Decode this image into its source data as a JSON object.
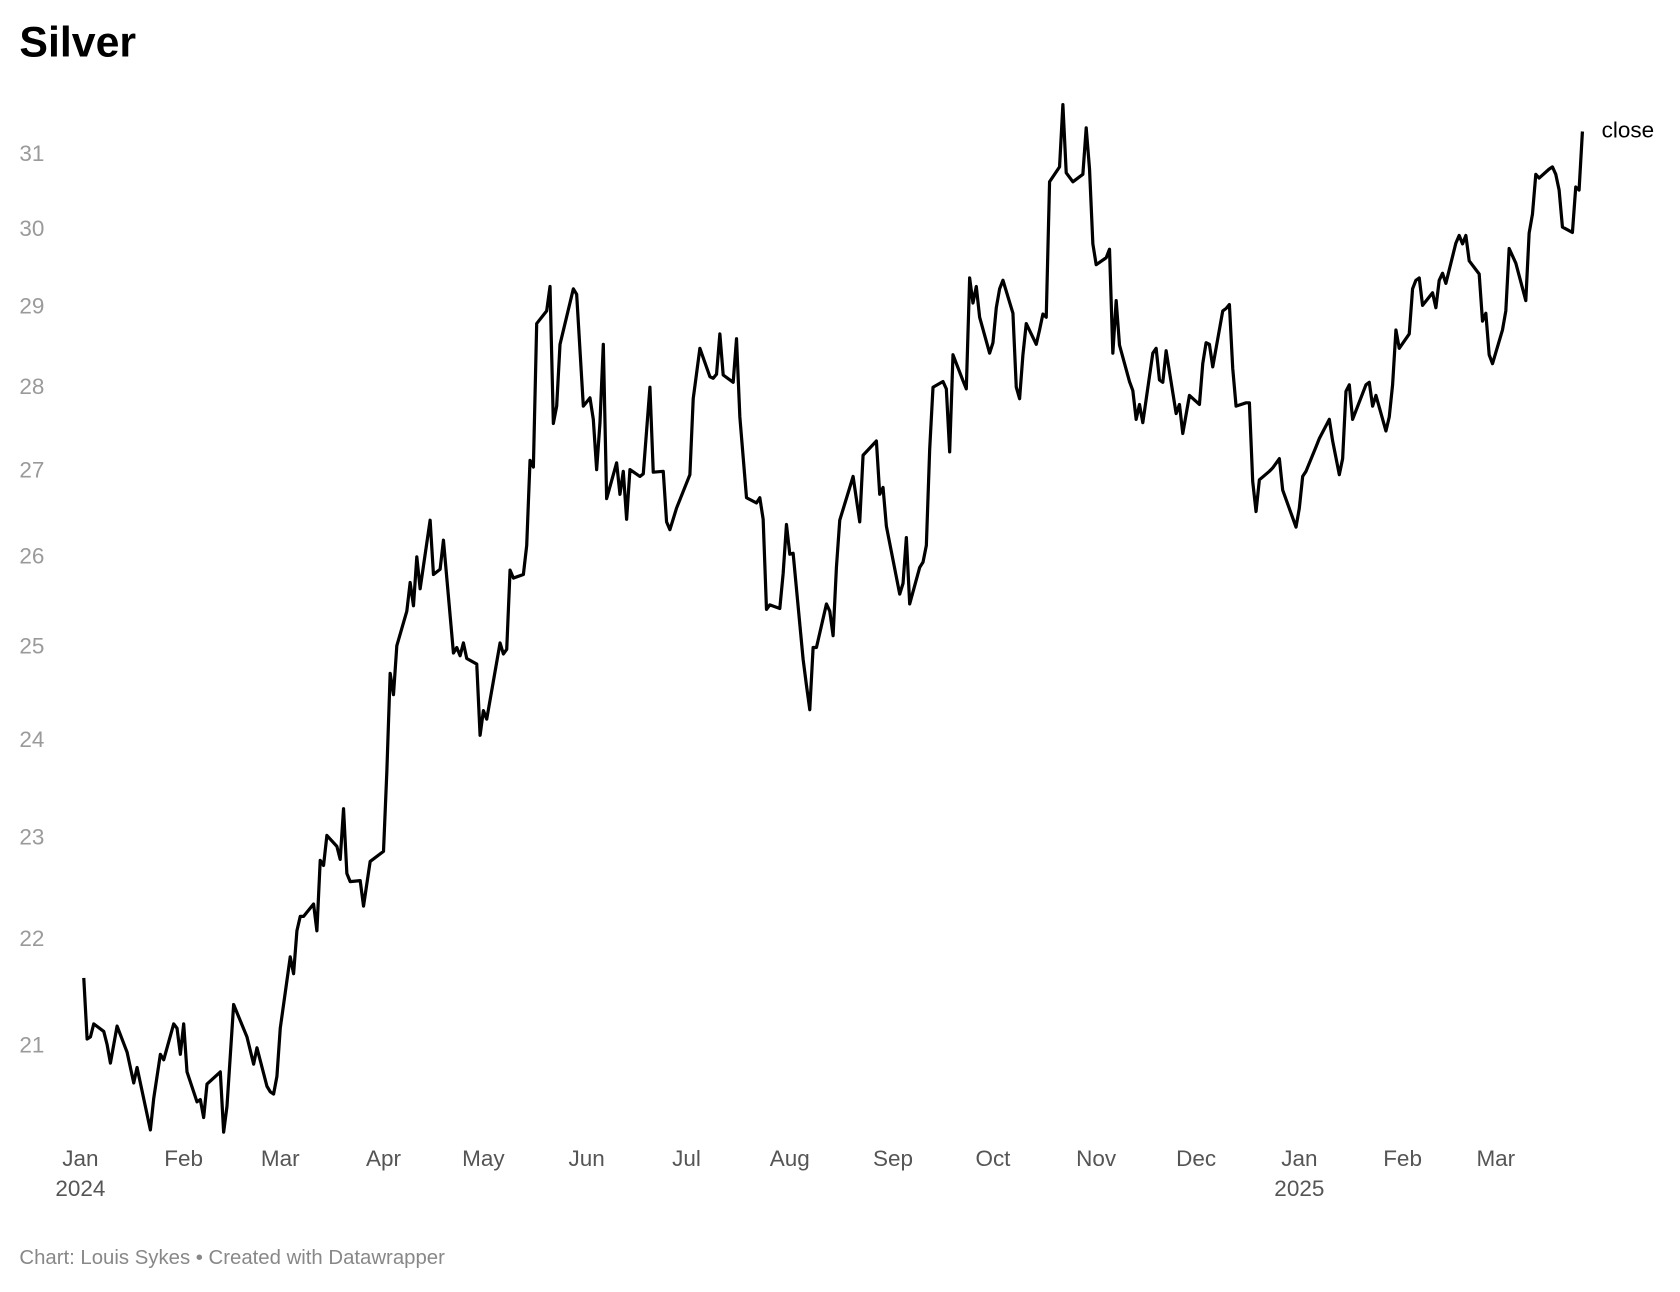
{
  "chart_data": {
    "type": "line",
    "title": "Silver",
    "source": "Chart: Louis Sykes • Created with Datawrapper",
    "x": [
      "2024-01-02",
      "2024-01-03",
      "2024-01-04",
      "2024-01-05",
      "2024-01-08",
      "2024-01-09",
      "2024-01-10",
      "2024-01-12",
      "2024-01-15",
      "2024-01-17",
      "2024-01-18",
      "2024-01-22",
      "2024-01-23",
      "2024-01-25",
      "2024-01-26",
      "2024-01-29",
      "2024-01-30",
      "2024-01-31",
      "2024-02-01",
      "2024-02-02",
      "2024-02-05",
      "2024-02-06",
      "2024-02-07",
      "2024-02-08",
      "2024-02-12",
      "2024-02-13",
      "2024-02-14",
      "2024-02-16",
      "2024-02-20",
      "2024-02-22",
      "2024-02-23",
      "2024-02-26",
      "2024-02-27",
      "2024-02-28",
      "2024-02-29",
      "2024-03-01",
      "2024-03-04",
      "2024-03-05",
      "2024-03-06",
      "2024-03-07",
      "2024-03-08",
      "2024-03-11",
      "2024-03-12",
      "2024-03-13",
      "2024-03-14",
      "2024-03-15",
      "2024-03-18",
      "2024-03-19",
      "2024-03-20",
      "2024-03-21",
      "2024-03-22",
      "2024-03-25",
      "2024-03-26",
      "2024-03-28",
      "2024-04-01",
      "2024-04-02",
      "2024-04-03",
      "2024-04-04",
      "2024-04-05",
      "2024-04-08",
      "2024-04-09",
      "2024-04-10",
      "2024-04-11",
      "2024-04-12",
      "2024-04-15",
      "2024-04-16",
      "2024-04-18",
      "2024-04-19",
      "2024-04-22",
      "2024-04-23",
      "2024-04-24",
      "2024-04-25",
      "2024-04-26",
      "2024-04-29",
      "2024-04-30",
      "2024-05-01",
      "2024-05-02",
      "2024-05-06",
      "2024-05-07",
      "2024-05-08",
      "2024-05-09",
      "2024-05-10",
      "2024-05-13",
      "2024-05-14",
      "2024-05-15",
      "2024-05-16",
      "2024-05-17",
      "2024-05-20",
      "2024-05-21",
      "2024-05-22",
      "2024-05-23",
      "2024-05-24",
      "2024-05-28",
      "2024-05-29",
      "2024-05-31",
      "2024-06-02",
      "2024-06-03",
      "2024-06-04",
      "2024-06-05",
      "2024-06-06",
      "2024-06-07",
      "2024-06-10",
      "2024-06-11",
      "2024-06-12",
      "2024-06-13",
      "2024-06-14",
      "2024-06-17",
      "2024-06-18",
      "2024-06-20",
      "2024-06-21",
      "2024-06-24",
      "2024-06-25",
      "2024-06-26",
      "2024-06-28",
      "2024-07-02",
      "2024-07-03",
      "2024-07-05",
      "2024-07-08",
      "2024-07-09",
      "2024-07-10",
      "2024-07-11",
      "2024-07-12",
      "2024-07-15",
      "2024-07-16",
      "2024-07-17",
      "2024-07-19",
      "2024-07-22",
      "2024-07-23",
      "2024-07-24",
      "2024-07-25",
      "2024-07-26",
      "2024-07-29",
      "2024-07-30",
      "2024-07-31",
      "2024-08-01",
      "2024-08-02",
      "2024-08-05",
      "2024-08-06",
      "2024-08-07",
      "2024-08-08",
      "2024-08-09",
      "2024-08-12",
      "2024-08-13",
      "2024-08-14",
      "2024-08-15",
      "2024-08-16",
      "2024-08-19",
      "2024-08-20",
      "2024-08-22",
      "2024-08-23",
      "2024-08-27",
      "2024-08-28",
      "2024-08-29",
      "2024-08-30",
      "2024-09-03",
      "2024-09-04",
      "2024-09-05",
      "2024-09-06",
      "2024-09-09",
      "2024-09-10",
      "2024-09-11",
      "2024-09-12",
      "2024-09-13",
      "2024-09-16",
      "2024-09-17",
      "2024-09-18",
      "2024-09-19",
      "2024-09-22",
      "2024-09-23",
      "2024-09-24",
      "2024-09-25",
      "2024-09-26",
      "2024-09-27",
      "2024-09-30",
      "2024-10-01",
      "2024-10-02",
      "2024-10-03",
      "2024-10-04",
      "2024-10-07",
      "2024-10-08",
      "2024-10-09",
      "2024-10-10",
      "2024-10-11",
      "2024-10-14",
      "2024-10-15",
      "2024-10-16",
      "2024-10-17",
      "2024-10-18",
      "2024-10-21",
      "2024-10-22",
      "2024-10-23",
      "2024-10-25",
      "2024-10-28",
      "2024-10-29",
      "2024-10-30",
      "2024-10-31",
      "2024-11-01",
      "2024-11-04",
      "2024-11-05",
      "2024-11-06",
      "2024-11-07",
      "2024-11-08",
      "2024-11-11",
      "2024-11-12",
      "2024-11-13",
      "2024-11-14",
      "2024-11-15",
      "2024-11-18",
      "2024-11-19",
      "2024-11-20",
      "2024-11-21",
      "2024-11-22",
      "2024-11-25",
      "2024-11-26",
      "2024-11-27",
      "2024-11-29",
      "2024-12-02",
      "2024-12-03",
      "2024-12-04",
      "2024-12-05",
      "2024-12-06",
      "2024-12-09",
      "2024-12-10",
      "2024-12-11",
      "2024-12-12",
      "2024-12-13",
      "2024-12-16",
      "2024-12-17",
      "2024-12-18",
      "2024-12-19",
      "2024-12-20",
      "2024-12-23",
      "2024-12-24",
      "2024-12-26",
      "2024-12-27",
      "2024-12-31",
      "2025-01-01",
      "2025-01-02",
      "2025-01-03",
      "2025-01-06",
      "2025-01-07",
      "2025-01-10",
      "2025-01-11",
      "2025-01-13",
      "2025-01-14",
      "2025-01-15",
      "2025-01-16",
      "2025-01-17",
      "2025-01-21",
      "2025-01-22",
      "2025-01-23",
      "2025-01-24",
      "2025-01-27",
      "2025-01-28",
      "2025-01-29",
      "2025-01-30",
      "2025-01-31",
      "2025-02-03",
      "2025-02-04",
      "2025-02-05",
      "2025-02-06",
      "2025-02-07",
      "2025-02-10",
      "2025-02-11",
      "2025-02-12",
      "2025-02-13",
      "2025-02-14",
      "2025-02-17",
      "2025-02-18",
      "2025-02-19",
      "2025-02-20",
      "2025-02-21",
      "2025-02-24",
      "2025-02-25",
      "2025-02-26",
      "2025-02-27",
      "2025-02-28",
      "2025-03-03",
      "2025-03-04",
      "2025-03-05",
      "2025-03-07",
      "2025-03-10",
      "2025-03-11",
      "2025-03-12",
      "2025-03-13",
      "2025-03-14",
      "2025-03-17",
      "2025-03-18",
      "2025-03-19",
      "2025-03-20",
      "2025-03-21",
      "2025-03-24",
      "2025-03-25",
      "2025-03-26",
      "2025-03-27"
    ],
    "series": [
      {
        "name": "close",
        "color": "#000000",
        "values": [
          21.64,
          21.07,
          21.09,
          21.21,
          21.14,
          21.02,
          20.85,
          21.19,
          20.95,
          20.67,
          20.81,
          20.25,
          20.53,
          20.93,
          20.88,
          21.21,
          21.17,
          20.93,
          21.21,
          20.77,
          20.5,
          20.52,
          20.36,
          20.66,
          20.77,
          20.23,
          20.46,
          21.39,
          21.09,
          20.84,
          20.99,
          20.64,
          20.59,
          20.57,
          20.73,
          21.17,
          21.84,
          21.68,
          22.09,
          22.23,
          22.23,
          22.35,
          22.09,
          22.78,
          22.73,
          23.03,
          22.92,
          22.79,
          23.3,
          22.65,
          22.57,
          22.58,
          22.33,
          22.77,
          22.87,
          23.68,
          24.72,
          24.49,
          25.02,
          25.4,
          25.72,
          25.46,
          26.01,
          25.65,
          26.43,
          25.81,
          25.87,
          26.2,
          24.94,
          25.0,
          24.91,
          25.05,
          24.88,
          24.82,
          24.06,
          24.32,
          24.23,
          25.05,
          24.93,
          24.98,
          25.86,
          25.77,
          25.81,
          26.14,
          27.13,
          27.05,
          28.8,
          28.96,
          29.27,
          27.57,
          27.78,
          28.54,
          29.24,
          29.17,
          27.78,
          27.88,
          27.62,
          27.02,
          27.58,
          28.54,
          26.68,
          27.1,
          26.73,
          27.0,
          26.44,
          27.02,
          26.94,
          26.97,
          28.01,
          26.99,
          27.0,
          26.41,
          26.32,
          26.57,
          26.96,
          27.87,
          28.49,
          28.14,
          28.12,
          28.17,
          28.67,
          28.16,
          28.07,
          28.61,
          27.65,
          26.69,
          26.63,
          26.69,
          26.44,
          25.42,
          25.47,
          25.43,
          25.82,
          26.38,
          26.04,
          26.05,
          24.87,
          24.59,
          24.33,
          25.0,
          25.0,
          25.48,
          25.4,
          25.13,
          25.89,
          26.43,
          26.81,
          26.94,
          26.41,
          27.19,
          27.36,
          26.73,
          26.81,
          26.36,
          25.59,
          25.71,
          26.23,
          25.48,
          25.89,
          25.95,
          26.14,
          27.26,
          28.01,
          28.08,
          27.99,
          27.23,
          28.41,
          28.09,
          27.99,
          29.38,
          29.06,
          29.27,
          28.88,
          28.43,
          28.56,
          29.0,
          29.24,
          29.35,
          28.93,
          28.01,
          27.87,
          28.41,
          28.8,
          28.54,
          28.72,
          28.92,
          28.88,
          30.64,
          30.84,
          31.69,
          30.76,
          30.64,
          30.74,
          31.37,
          30.81,
          29.82,
          29.55,
          29.64,
          29.75,
          28.43,
          29.09,
          28.53,
          28.08,
          27.97,
          27.62,
          27.8,
          27.58,
          28.43,
          28.49,
          28.1,
          28.07,
          28.46,
          27.69,
          27.8,
          27.45,
          27.91,
          27.8,
          28.3,
          28.56,
          28.54,
          28.26,
          28.96,
          28.99,
          29.04,
          28.24,
          27.78,
          27.82,
          27.82,
          26.88,
          26.53,
          26.9,
          27.0,
          27.04,
          27.15,
          26.78,
          26.35,
          26.57,
          26.94,
          27.0,
          27.29,
          27.39,
          27.62,
          27.36,
          26.96,
          27.15,
          27.96,
          28.04,
          27.62,
          28.04,
          28.07,
          27.78,
          27.91,
          27.48,
          27.65,
          28.04,
          28.72,
          28.49,
          28.67,
          29.24,
          29.35,
          29.38,
          29.03,
          29.19,
          29.0,
          29.35,
          29.44,
          29.31,
          29.83,
          29.93,
          29.82,
          29.93,
          29.6,
          29.43,
          28.83,
          28.93,
          28.41,
          28.3,
          28.72,
          28.96,
          29.76,
          29.57,
          29.09,
          29.96,
          30.21,
          30.74,
          30.69,
          30.81,
          30.84,
          30.74,
          30.53,
          30.04,
          29.97,
          30.57,
          30.53,
          31.32
        ]
      }
    ],
    "xlim": [
      "2024-01-01",
      "2025-03-27"
    ],
    "xticks": [
      {
        "value": "2024-01-01",
        "label": "Jan"
      },
      {
        "value": "2024-02-01",
        "label": "Feb"
      },
      {
        "value": "2024-03-01",
        "label": "Mar"
      },
      {
        "value": "2024-04-01",
        "label": "Apr"
      },
      {
        "value": "2024-05-01",
        "label": "May"
      },
      {
        "value": "2024-06-01",
        "label": "Jun"
      },
      {
        "value": "2024-07-01",
        "label": "Jul"
      },
      {
        "value": "2024-08-01",
        "label": "Aug"
      },
      {
        "value": "2024-09-01",
        "label": "Sep"
      },
      {
        "value": "2024-10-01",
        "label": "Oct"
      },
      {
        "value": "2024-11-01",
        "label": "Nov"
      },
      {
        "value": "2024-12-01",
        "label": "Dec"
      },
      {
        "value": "2025-01-01",
        "label": "Jan"
      },
      {
        "value": "2025-02-01",
        "label": "Feb"
      },
      {
        "value": "2025-03-01",
        "label": "Mar"
      }
    ],
    "xtick_years": [
      {
        "value": "2024-01-01",
        "label": "2024"
      },
      {
        "value": "2025-01-01",
        "label": "2025"
      }
    ],
    "ylim": [
      20.2,
      31.7
    ],
    "yticks": [
      21,
      22,
      23,
      24,
      25,
      26,
      27,
      28,
      29,
      30,
      31
    ],
    "log_scale": true,
    "grid": false
  }
}
